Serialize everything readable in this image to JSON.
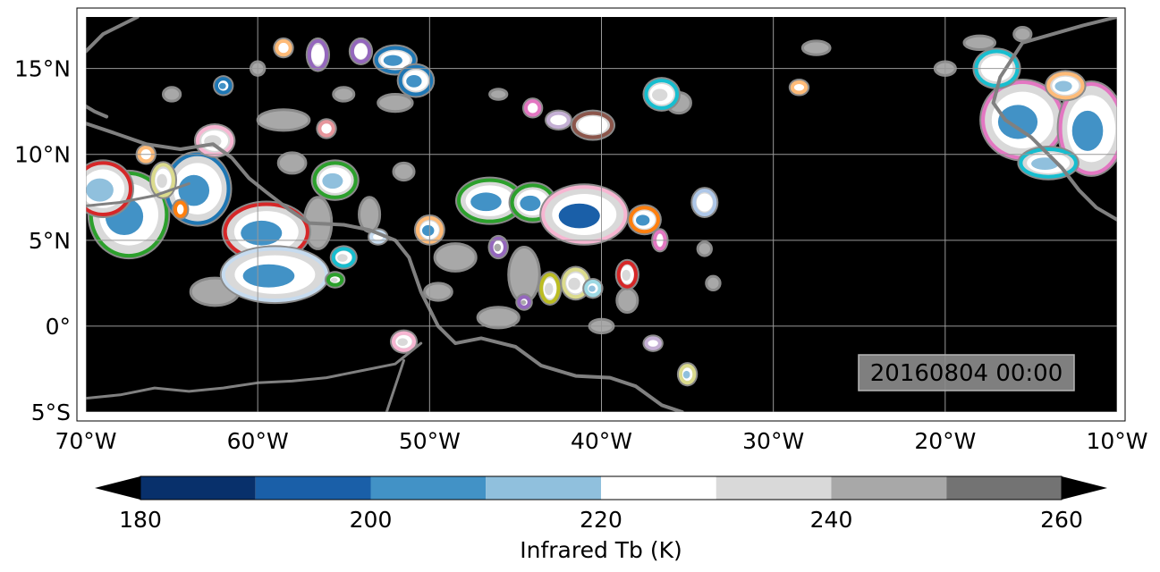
{
  "map": {
    "extent": {
      "lon_min": -70,
      "lon_max": -10,
      "lat_min": -5,
      "lat_max": 18
    },
    "ocean_color": "#000000",
    "coastline_color": "#808080",
    "gridlines": true,
    "x_ticks": [
      {
        "lon": -70,
        "label": "70°W"
      },
      {
        "lon": -60,
        "label": "60°W"
      },
      {
        "lon": -50,
        "label": "50°W"
      },
      {
        "lon": -40,
        "label": "40°W"
      },
      {
        "lon": -30,
        "label": "30°W"
      },
      {
        "lon": -20,
        "label": "20°W"
      },
      {
        "lon": -10,
        "label": "10°W"
      }
    ],
    "y_ticks": [
      {
        "lat": 15,
        "label": "15°N"
      },
      {
        "lat": 10,
        "label": "10°N"
      },
      {
        "lat": 5,
        "label": "5°N"
      },
      {
        "lat": 0,
        "label": "0°"
      },
      {
        "lat": -5,
        "label": "5°S"
      }
    ],
    "timestamp": "20160804 00:00"
  },
  "colorbar": {
    "label": "Infrared Tb (K)",
    "min": 180,
    "max": 260,
    "levels": [
      180,
      190,
      200,
      210,
      220,
      230,
      240,
      250,
      260
    ],
    "colors": [
      "#08306b",
      "#1a5fa8",
      "#4292c6",
      "#90c0dd",
      "#ffffff",
      "#d9d9d9",
      "#a8a8a8",
      "#737373"
    ],
    "under_color": "#000000",
    "over_color": "#000000",
    "ticks": [
      {
        "value": 180,
        "label": "180"
      },
      {
        "value": 200,
        "label": "200"
      },
      {
        "value": 220,
        "label": "220"
      },
      {
        "value": 240,
        "label": "240"
      },
      {
        "value": 260,
        "label": "260"
      }
    ]
  },
  "cloud_systems": [
    {
      "lon": -67.5,
      "lat": 6.5,
      "rx": 2.2,
      "ry": 2.4,
      "outline": "#2ca02c",
      "core": "#4292c6"
    },
    {
      "lon": -69.0,
      "lat": 8.0,
      "rx": 1.6,
      "ry": 1.5,
      "outline": "#d62728",
      "core": "#90c0dd"
    },
    {
      "lon": -63.5,
      "lat": 8.0,
      "rx": 1.8,
      "ry": 2.0,
      "outline": "#1f77b4",
      "core": "#4292c6"
    },
    {
      "lon": -59.5,
      "lat": 5.5,
      "rx": 2.4,
      "ry": 1.6,
      "outline": "#d62728",
      "core": "#4292c6"
    },
    {
      "lon": -59.0,
      "lat": 3.0,
      "rx": 3.0,
      "ry": 1.5,
      "outline": "#c6dbef",
      "core": "#4292c6"
    },
    {
      "lon": -55.5,
      "lat": 8.5,
      "rx": 1.2,
      "ry": 1.0,
      "outline": "#2ca02c",
      "core": "#90c0dd"
    },
    {
      "lon": -46.5,
      "lat": 7.3,
      "rx": 1.8,
      "ry": 1.2,
      "outline": "#2ca02c",
      "core": "#4292c6"
    },
    {
      "lon": -44.0,
      "lat": 7.2,
      "rx": 1.2,
      "ry": 1.0,
      "outline": "#2ca02c",
      "core": "#4292c6"
    },
    {
      "lon": -41.0,
      "lat": 6.5,
      "rx": 2.4,
      "ry": 1.6,
      "outline": "#f7b6d2",
      "core": "#1a5fa8"
    },
    {
      "lon": -37.5,
      "lat": 6.2,
      "rx": 0.8,
      "ry": 0.7,
      "outline": "#ff7f0e",
      "core": "#4292c6"
    },
    {
      "lon": -50.0,
      "lat": 5.6,
      "rx": 0.7,
      "ry": 0.7,
      "outline": "#ffbb78",
      "core": "#4292c6"
    },
    {
      "lon": -52.0,
      "lat": 15.5,
      "rx": 1.1,
      "ry": 0.7,
      "outline": "#1f77b4",
      "core": "#4292c6"
    },
    {
      "lon": -50.8,
      "lat": 14.3,
      "rx": 0.9,
      "ry": 0.8,
      "outline": "#1f77b4",
      "core": "#4292c6"
    },
    {
      "lon": -40.5,
      "lat": 11.7,
      "rx": 1.1,
      "ry": 0.7,
      "outline": "#8c564b",
      "core": "#ffffff"
    },
    {
      "lon": -36.5,
      "lat": 13.5,
      "rx": 0.9,
      "ry": 0.8,
      "outline": "#17becf",
      "core": "#d9d9d9"
    },
    {
      "lon": -15.5,
      "lat": 12.0,
      "rx": 2.3,
      "ry": 2.2,
      "outline": "#e377c2",
      "core": "#4292c6"
    },
    {
      "lon": -11.5,
      "lat": 11.5,
      "rx": 1.8,
      "ry": 2.6,
      "outline": "#e377c2",
      "core": "#4292c6"
    },
    {
      "lon": -17.0,
      "lat": 15.0,
      "rx": 1.2,
      "ry": 1.0,
      "outline": "#17becf",
      "core": "#ffffff"
    },
    {
      "lon": -14.0,
      "lat": 9.5,
      "rx": 1.6,
      "ry": 0.8,
      "outline": "#17becf",
      "core": "#90c0dd"
    },
    {
      "lon": -13.0,
      "lat": 14.0,
      "rx": 1.0,
      "ry": 0.7,
      "outline": "#ffbb78",
      "core": "#90c0dd"
    },
    {
      "lon": -56.5,
      "lat": 15.8,
      "rx": 0.5,
      "ry": 0.8,
      "outline": "#9467bd",
      "core": "#ffffff"
    },
    {
      "lon": -62.5,
      "lat": 10.8,
      "rx": 1.0,
      "ry": 0.8,
      "outline": "#f7b6d2",
      "core": "#d9d9d9"
    },
    {
      "lon": -43.0,
      "lat": 2.2,
      "rx": 0.5,
      "ry": 0.8,
      "outline": "#bcbd22",
      "core": "#d9d9d9"
    },
    {
      "lon": -41.5,
      "lat": 2.5,
      "rx": 0.7,
      "ry": 0.8,
      "outline": "#dbdb8d",
      "core": "#d9d9d9"
    },
    {
      "lon": -38.5,
      "lat": 3.0,
      "rx": 0.5,
      "ry": 0.7,
      "outline": "#d62728",
      "core": "#d9d9d9"
    },
    {
      "lon": -34.0,
      "lat": 7.2,
      "rx": 0.6,
      "ry": 0.7,
      "outline": "#aec7e8",
      "core": "#ffffff"
    },
    {
      "lon": -46.0,
      "lat": 4.6,
      "rx": 0.4,
      "ry": 0.5,
      "outline": "#9467bd",
      "core": "#a8a8a8"
    },
    {
      "lon": -55.0,
      "lat": 4.0,
      "rx": 0.6,
      "ry": 0.5,
      "outline": "#17becf",
      "core": "#d9d9d9"
    },
    {
      "lon": -51.5,
      "lat": -0.9,
      "rx": 0.6,
      "ry": 0.5,
      "outline": "#f7b6d2",
      "core": "#d9d9d9"
    },
    {
      "lon": -35.0,
      "lat": -2.8,
      "rx": 0.4,
      "ry": 0.5,
      "outline": "#dbdb8d",
      "core": "#90c0dd"
    },
    {
      "lon": -37.0,
      "lat": -1.0,
      "rx": 0.4,
      "ry": 0.3,
      "outline": "#c5b0d5",
      "core": "#ffffff"
    },
    {
      "lon": -28.5,
      "lat": 13.9,
      "rx": 0.4,
      "ry": 0.3,
      "outline": "#ffbb78",
      "core": "#ffffff"
    },
    {
      "lon": -62.0,
      "lat": 14.0,
      "rx": 0.4,
      "ry": 0.4,
      "outline": "#1f77b4",
      "core": "#4292c6"
    },
    {
      "lon": -58.5,
      "lat": 16.2,
      "rx": 0.4,
      "ry": 0.4,
      "outline": "#ffbb78",
      "core": "#ffffff"
    },
    {
      "lon": -54.0,
      "lat": 16.0,
      "rx": 0.5,
      "ry": 0.6,
      "outline": "#9467bd",
      "core": "#ffffff"
    },
    {
      "lon": -56.0,
      "lat": 11.5,
      "rx": 0.4,
      "ry": 0.4,
      "outline": "#e7969c",
      "core": "#ffffff"
    },
    {
      "lon": -53.0,
      "lat": 5.2,
      "rx": 0.4,
      "ry": 0.3,
      "outline": "#c6dbef",
      "core": "#ffffff"
    },
    {
      "lon": -55.5,
      "lat": 2.7,
      "rx": 0.4,
      "ry": 0.3,
      "outline": "#2ca02c",
      "core": "#d9d9d9"
    },
    {
      "lon": -42.5,
      "lat": 12.0,
      "rx": 0.6,
      "ry": 0.4,
      "outline": "#c5b0d5",
      "core": "#ffffff"
    },
    {
      "lon": -44.0,
      "lat": 12.7,
      "rx": 0.4,
      "ry": 0.4,
      "outline": "#e377c2",
      "core": "#ffffff"
    },
    {
      "lon": -66.5,
      "lat": 10.0,
      "rx": 0.4,
      "ry": 0.4,
      "outline": "#ffbb78",
      "core": "#ffffff"
    },
    {
      "lon": -64.5,
      "lat": 6.8,
      "rx": 0.3,
      "ry": 0.4,
      "outline": "#ff7f0e",
      "core": "#ffffff"
    },
    {
      "lon": -36.6,
      "lat": 5.0,
      "rx": 0.3,
      "ry": 0.5,
      "outline": "#e377c2",
      "core": "#ffffff"
    },
    {
      "lon": -44.5,
      "lat": 1.4,
      "rx": 0.3,
      "ry": 0.3,
      "outline": "#9467bd",
      "core": "#a8a8a8"
    },
    {
      "lon": -40.5,
      "lat": 2.2,
      "rx": 0.4,
      "ry": 0.4,
      "outline": "#9edae5",
      "core": "#90c0dd"
    },
    {
      "lon": -65.5,
      "lat": 8.5,
      "rx": 0.6,
      "ry": 0.9,
      "outline": "#dbdb8d",
      "core": "#d9d9d9"
    }
  ],
  "gray_patches": [
    {
      "lon": -56.5,
      "lat": 6.0,
      "rx": 0.8,
      "ry": 1.5
    },
    {
      "lon": -53.5,
      "lat": 6.5,
      "rx": 0.6,
      "ry": 1.0
    },
    {
      "lon": -48.5,
      "lat": 4.0,
      "rx": 1.2,
      "ry": 0.8
    },
    {
      "lon": -44.5,
      "lat": 3.0,
      "rx": 0.9,
      "ry": 1.6
    },
    {
      "lon": -46.0,
      "lat": 0.5,
      "rx": 1.2,
      "ry": 0.6
    },
    {
      "lon": -35.5,
      "lat": 13.0,
      "rx": 0.7,
      "ry": 0.6
    },
    {
      "lon": -52.0,
      "lat": 13.0,
      "rx": 1.0,
      "ry": 0.5
    },
    {
      "lon": -58.5,
      "lat": 12.0,
      "rx": 1.5,
      "ry": 0.6
    },
    {
      "lon": -62.5,
      "lat": 2.0,
      "rx": 1.4,
      "ry": 0.8
    },
    {
      "lon": -58.0,
      "lat": 9.5,
      "rx": 0.8,
      "ry": 0.6
    },
    {
      "lon": -51.5,
      "lat": 9.0,
      "rx": 0.6,
      "ry": 0.5
    },
    {
      "lon": -49.5,
      "lat": 2.0,
      "rx": 0.8,
      "ry": 0.5
    },
    {
      "lon": -38.5,
      "lat": 1.5,
      "rx": 0.6,
      "ry": 0.7
    },
    {
      "lon": -40.0,
      "lat": 0.0,
      "rx": 0.7,
      "ry": 0.4
    },
    {
      "lon": -34.0,
      "lat": 4.5,
      "rx": 0.4,
      "ry": 0.4
    },
    {
      "lon": -65.0,
      "lat": 13.5,
      "rx": 0.5,
      "ry": 0.4
    },
    {
      "lon": -27.5,
      "lat": 16.2,
      "rx": 0.8,
      "ry": 0.4
    },
    {
      "lon": -18.0,
      "lat": 16.5,
      "rx": 0.9,
      "ry": 0.4
    },
    {
      "lon": -20.0,
      "lat": 15.0,
      "rx": 0.6,
      "ry": 0.4
    },
    {
      "lon": -15.5,
      "lat": 17.0,
      "rx": 0.5,
      "ry": 0.4
    },
    {
      "lon": -33.5,
      "lat": 2.5,
      "rx": 0.4,
      "ry": 0.4
    },
    {
      "lon": -55.0,
      "lat": 13.5,
      "rx": 0.6,
      "ry": 0.4
    },
    {
      "lon": -60.0,
      "lat": 15.0,
      "rx": 0.4,
      "ry": 0.4
    },
    {
      "lon": -46.0,
      "lat": 13.5,
      "rx": 0.5,
      "ry": 0.3
    }
  ],
  "coastlines": [
    [
      [
        -70,
        11.8
      ],
      [
        -68.5,
        11.3
      ],
      [
        -66.5,
        10.6
      ],
      [
        -64.5,
        10.3
      ],
      [
        -62.6,
        10.6
      ],
      [
        -61.5,
        9.8
      ],
      [
        -60.5,
        8.6
      ],
      [
        -59.5,
        7.8
      ],
      [
        -58.2,
        6.8
      ],
      [
        -57.0,
        6.0
      ],
      [
        -55.0,
        5.9
      ],
      [
        -53.5,
        5.6
      ],
      [
        -52.0,
        5.0
      ],
      [
        -51.2,
        4.0
      ],
      [
        -50.5,
        2.0
      ],
      [
        -50.0,
        1.0
      ],
      [
        -49.5,
        0.0
      ],
      [
        -48.5,
        -1.0
      ],
      [
        -47.0,
        -0.7
      ],
      [
        -45.0,
        -1.2
      ],
      [
        -43.5,
        -2.3
      ],
      [
        -41.5,
        -2.9
      ],
      [
        -39.5,
        -3.0
      ],
      [
        -38.0,
        -3.5
      ],
      [
        -36.5,
        -4.6
      ],
      [
        -35.3,
        -5.0
      ]
    ],
    [
      [
        -70,
        16.0
      ],
      [
        -69.0,
        17.0
      ],
      [
        -67.0,
        18.0
      ]
    ],
    [
      [
        -70,
        12.8
      ],
      [
        -69.5,
        12.5
      ],
      [
        -68.8,
        12.2
      ]
    ],
    [
      [
        -10.0,
        18.0
      ],
      [
        -12.0,
        17.5
      ],
      [
        -15.5,
        16.5
      ],
      [
        -16.8,
        14.5
      ],
      [
        -17.2,
        13.0
      ],
      [
        -16.5,
        12.0
      ],
      [
        -15.0,
        11.0
      ],
      [
        -14.0,
        10.0
      ],
      [
        -13.2,
        9.2
      ],
      [
        -12.2,
        7.9
      ],
      [
        -11.2,
        6.9
      ],
      [
        -10.0,
        6.2
      ]
    ]
  ],
  "rivers": [
    [
      [
        -50.5,
        -1.0
      ],
      [
        -52.0,
        -2.2
      ],
      [
        -54.0,
        -2.6
      ],
      [
        -56.0,
        -3.0
      ],
      [
        -58.0,
        -3.2
      ],
      [
        -60.0,
        -3.3
      ],
      [
        -62.0,
        -3.6
      ],
      [
        -64.0,
        -3.8
      ],
      [
        -66.0,
        -3.6
      ],
      [
        -68.0,
        -4.0
      ],
      [
        -70.0,
        -4.2
      ]
    ],
    [
      [
        -64.0,
        8.3
      ],
      [
        -66.0,
        7.6
      ],
      [
        -68.0,
        7.2
      ],
      [
        -70.0,
        7.0
      ]
    ],
    [
      [
        -51.5,
        -2.0
      ],
      [
        -52.0,
        -3.5
      ],
      [
        -52.5,
        -5.0
      ]
    ]
  ]
}
